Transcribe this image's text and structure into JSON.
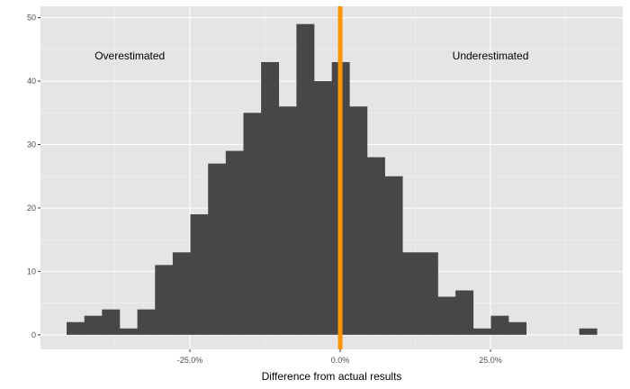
{
  "chart_data": {
    "type": "histogram",
    "title": "",
    "xlabel": "Difference from actual results",
    "ylabel": "",
    "bin_start": -45.5,
    "bin_width": 2.94,
    "counts": [
      2,
      3,
      4,
      1,
      4,
      11,
      13,
      19,
      27,
      29,
      35,
      43,
      36,
      49,
      40,
      43,
      36,
      28,
      25,
      13,
      13,
      6,
      7,
      1,
      3,
      2,
      0,
      0,
      0,
      1
    ],
    "xlim": [
      -49.85,
      47.0
    ],
    "ylim": [
      -2.3,
      51.8
    ],
    "x_ticks": [
      -25,
      0,
      25
    ],
    "x_tick_labels": [
      "-25.0%",
      "0.0%",
      "25.0%"
    ],
    "y_ticks": [
      0,
      10,
      20,
      30,
      40,
      50
    ],
    "y_tick_labels": [
      "0",
      "10",
      "20",
      "30",
      "40",
      "50"
    ],
    "grid": true,
    "vline": {
      "x": 0,
      "color": "#FF9300"
    },
    "annotations": [
      {
        "text": "Overestimated",
        "x": -35,
        "y": 44
      },
      {
        "text": "Underestimated",
        "x": 25,
        "y": 44
      }
    ],
    "bar_color": "#474747",
    "panel_color": "#E5E5E5"
  }
}
